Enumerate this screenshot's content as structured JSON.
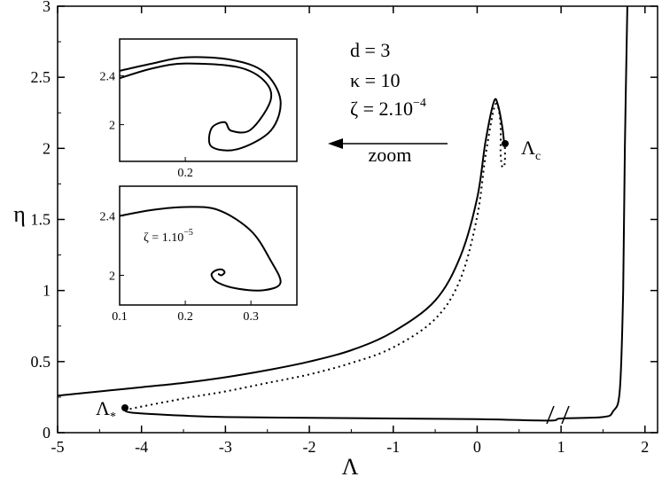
{
  "chart_data": [
    {
      "type": "line",
      "xlabel": "Λ",
      "ylabel": "η",
      "xlim": [
        -5,
        2.15
      ],
      "ylim": [
        0,
        3
      ],
      "x_ticks": [
        "-5",
        "-4",
        "-3",
        "-2",
        "-1",
        "0",
        "1",
        "2"
      ],
      "y_ticks": [
        "0",
        "0.5",
        "1",
        "1.5",
        "2",
        "2.5",
        "3"
      ],
      "x_axis_break_near": 0.9,
      "annotations": [
        "d = 3",
        "κ = 10",
        "ζ = 2.10−4",
        "zoom"
      ],
      "point_labels": [
        "Λc",
        "Λ*"
      ],
      "series": [
        {
          "style": "solid",
          "points": [
            [
              -5,
              0.26
            ],
            [
              -4.5,
              0.29
            ],
            [
              -4,
              0.32
            ],
            [
              -3.5,
              0.35
            ],
            [
              -3,
              0.39
            ],
            [
              -2.5,
              0.44
            ],
            [
              -2,
              0.5
            ],
            [
              -1.5,
              0.58
            ],
            [
              -1,
              0.71
            ],
            [
              -0.5,
              0.93
            ],
            [
              -0.2,
              1.24
            ],
            [
              0,
              1.65
            ],
            [
              0.1,
              2.05
            ],
            [
              0.2,
              2.33
            ],
            [
              0.25,
              2.3
            ],
            [
              0.3,
              2.15
            ],
            [
              0.32,
              2.05
            ],
            [
              0.33,
              2.04
            ]
          ]
        },
        {
          "style": "dotted",
          "points": [
            [
              -4.2,
              0.16
            ],
            [
              -3.5,
              0.24
            ],
            [
              -3,
              0.29
            ],
            [
              -2.5,
              0.35
            ],
            [
              -2,
              0.41
            ],
            [
              -1.5,
              0.49
            ],
            [
              -1,
              0.6
            ],
            [
              -0.5,
              0.8
            ],
            [
              -0.2,
              1.08
            ],
            [
              0,
              1.52
            ],
            [
              0.1,
              1.95
            ],
            [
              0.2,
              2.28
            ],
            [
              0.25,
              2.29
            ],
            [
              0.28,
              2.15
            ],
            [
              0.28,
              1.96
            ],
            [
              0.3,
              1.87
            ],
            [
              0.33,
              1.9
            ],
            [
              0.33,
              2.04
            ]
          ]
        },
        {
          "style": "solid",
          "points": [
            [
              -4.2,
              0.16
            ],
            [
              -4.1,
              0.14
            ],
            [
              -3.5,
              0.12
            ],
            [
              -3,
              0.11
            ],
            [
              -2,
              0.105
            ],
            [
              -1,
              0.1
            ],
            [
              0,
              0.095
            ],
            [
              0.85,
              0.085
            ],
            [
              1,
              0.1
            ],
            [
              1.5,
              0.11
            ],
            [
              1.62,
              0.15
            ],
            [
              1.7,
              0.3
            ],
            [
              1.74,
              1
            ],
            [
              1.76,
              2
            ],
            [
              1.79,
              3
            ]
          ]
        }
      ],
      "marked_points": [
        {
          "label": "Λc",
          "x": 0.33,
          "y": 2.04
        },
        {
          "label": "Λ*",
          "x": -4.2,
          "y": 0.16
        }
      ]
    },
    {
      "type": "line",
      "inset": "top",
      "xlim": [
        0.1,
        0.37
      ],
      "ylim": [
        1.7,
        2.7
      ],
      "x_ticks": [
        "0.2"
      ],
      "y_ticks": [
        "2",
        "2.4"
      ],
      "series": [
        {
          "style": "solid",
          "points": [
            [
              0.1,
              2.44
            ],
            [
              0.15,
              2.5
            ],
            [
              0.2,
              2.55
            ],
            [
              0.27,
              2.53
            ],
            [
              0.32,
              2.43
            ],
            [
              0.345,
              2.2
            ],
            [
              0.33,
              1.95
            ],
            [
              0.28,
              1.8
            ],
            [
              0.24,
              1.82
            ],
            [
              0.24,
              1.97
            ],
            [
              0.26,
              2.02
            ],
            [
              0.27,
              1.95
            ],
            [
              0.3,
              1.96
            ],
            [
              0.33,
              2.2
            ],
            [
              0.32,
              2.36
            ],
            [
              0.28,
              2.47
            ],
            [
              0.2,
              2.5
            ],
            [
              0.15,
              2.46
            ],
            [
              0.1,
              2.38
            ]
          ]
        }
      ]
    },
    {
      "type": "line",
      "inset": "bottom",
      "xlim": [
        0.1,
        0.37
      ],
      "ylim": [
        1.8,
        2.6
      ],
      "x_ticks": [
        "0.1",
        "0.2",
        "0.3"
      ],
      "y_ticks": [
        "2",
        "2.4"
      ],
      "annotations": [
        "ζ = 1.10−5"
      ],
      "series": [
        {
          "style": "solid",
          "points": [
            [
              0.1,
              2.4
            ],
            [
              0.15,
              2.44
            ],
            [
              0.2,
              2.46
            ],
            [
              0.25,
              2.44
            ],
            [
              0.3,
              2.3
            ],
            [
              0.33,
              2.1
            ],
            [
              0.345,
              1.95
            ],
            [
              0.32,
              1.9
            ],
            [
              0.28,
              1.91
            ],
            [
              0.25,
              1.95
            ],
            [
              0.24,
              2.0
            ],
            [
              0.245,
              2.03
            ],
            [
              0.255,
              2.04
            ],
            [
              0.26,
              2.02
            ],
            [
              0.255,
              2.0
            ],
            [
              0.25,
              2.01
            ]
          ]
        }
      ]
    }
  ]
}
